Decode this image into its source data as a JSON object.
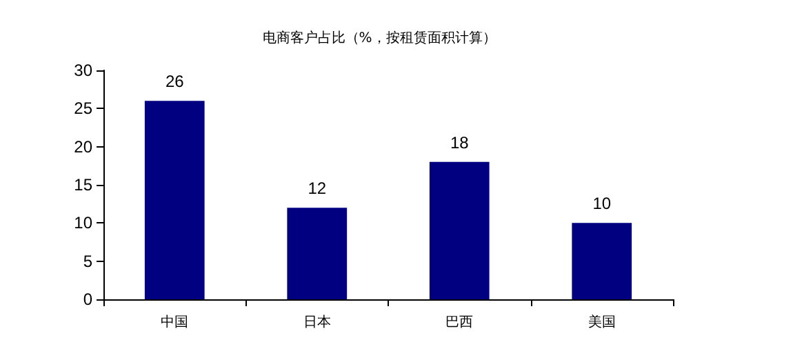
{
  "chart_data": {
    "type": "bar",
    "title": "电商客户占比（%，按租赁面积计算）",
    "categories": [
      "中国",
      "日本",
      "巴西",
      "美国"
    ],
    "values": [
      26,
      12,
      18,
      10
    ],
    "color": "#000080",
    "ylim": [
      0,
      30
    ],
    "yticks": [
      0,
      5,
      10,
      15,
      20,
      25,
      30
    ],
    "grid": false,
    "data_labels": true
  }
}
